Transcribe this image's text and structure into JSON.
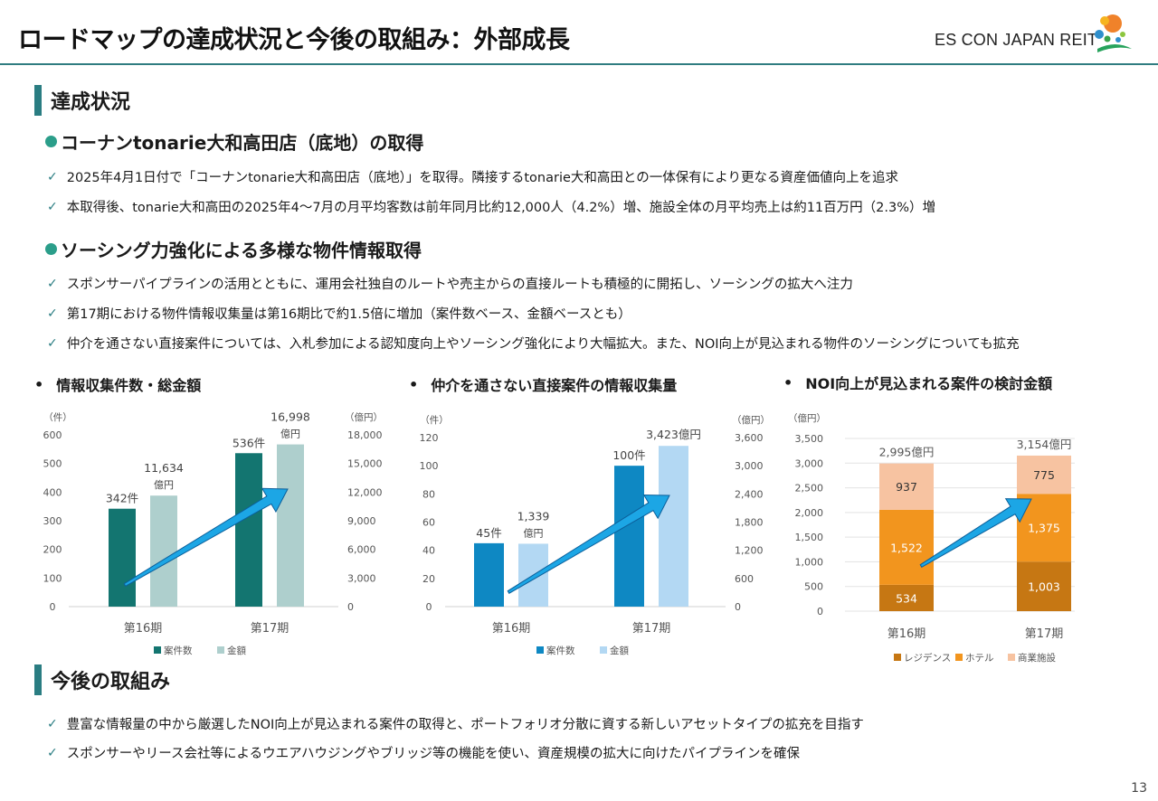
{
  "header": {
    "title": "ロードマップの達成状況と今後の取組み：外部成長",
    "logo_text": "ES CON JAPAN",
    "logo_suffix": "REIT"
  },
  "section1": {
    "label": "達成状況",
    "sub1": {
      "heading": "コーナンtonarie大和高田店（底地）の取得",
      "items": [
        "2025年4月1日付で「コーナンtonarie大和高田店（底地）」を取得。隣接するtonarie大和高田との一体保有により更なる資産価値向上を追求",
        "本取得後、tonarie大和高田の2025年4～7月の月平均客数は前年同月比約12,000人（4.2%）増、施設全体の月平均売上は約11百万円（2.3%）増"
      ]
    },
    "sub2": {
      "heading": "ソーシング力強化による多様な物件情報取得",
      "items": [
        "スポンサーパイプラインの活用とともに、運用会社独自のルートや売主からの直接ルートも積極的に開拓し、ソーシングの拡大へ注力",
        "第17期における物件情報収集量は第16期比で約1.5倍に増加（案件数ベース、金額ベースとも）",
        "仲介を通さない直接案件については、入札参加による認知度向上やソーシング強化により大幅拡大。また、NOI向上が見込まれる物件のソーシングについても拡充"
      ]
    }
  },
  "section2": {
    "label": "今後の取組み",
    "items": [
      "豊富な情報量の中から厳選したNOI向上が見込まれる案件の取得と、ポートフォリオ分散に資する新しいアセットタイプの拡充を目指す",
      "スポンサーやリース会社等によるウエアハウジングやブリッジ等の機能を使い、資産規模の拡大に向けたパイプラインを確保"
    ]
  },
  "bullet_mark": "•",
  "check_mark": "✓",
  "page_number": "13",
  "colors": {
    "teal_dark": "#137570",
    "teal_light": "#aecfcd",
    "blue_dark": "#0e88c3",
    "blue_light": "#b3d8f3",
    "residence": "#c67713",
    "hotel": "#f2951e",
    "commercial": "#f7c3a1",
    "arrow": "#1ca6e5"
  },
  "chart_data": [
    {
      "type": "bar",
      "title": "情報収集件数・総金額",
      "categories": [
        "第16期",
        "第17期"
      ],
      "ylabel_left": "（件）",
      "ylabel_right": "（億円）",
      "ylim_left": [
        0,
        600
      ],
      "ylim_right": [
        0,
        18000
      ],
      "yticks_left": [
        "0",
        "100",
        "200",
        "300",
        "400",
        "500",
        "600"
      ],
      "yticks_right": [
        "0",
        "3,000",
        "6,000",
        "9,000",
        "12,000",
        "15,000",
        "18,000"
      ],
      "series": [
        {
          "name": "案件数",
          "values": [
            342,
            536
          ],
          "labels": [
            "342件",
            "536件"
          ],
          "axis": "left"
        },
        {
          "name": "金額",
          "values": [
            11634,
            16998
          ],
          "labels": [
            "11,634",
            "16,998"
          ],
          "unit_labels": [
            "億円",
            "億円"
          ],
          "axis": "right"
        }
      ],
      "legend": "bottom"
    },
    {
      "type": "bar",
      "title": "仲介を通さない直接案件の情報収集量",
      "categories": [
        "第16期",
        "第17期"
      ],
      "ylabel_left": "（件）",
      "ylabel_right": "（億円）",
      "ylim_left": [
        0,
        120
      ],
      "ylim_right": [
        0,
        3600
      ],
      "yticks_left": [
        "0",
        "20",
        "40",
        "60",
        "80",
        "100",
        "120"
      ],
      "yticks_right": [
        "0",
        "600",
        "1,200",
        "1,800",
        "2,400",
        "3,000",
        "3,600"
      ],
      "series": [
        {
          "name": "案件数",
          "values": [
            45,
            100
          ],
          "labels": [
            "45件",
            "100件"
          ],
          "axis": "left"
        },
        {
          "name": "金額",
          "values": [
            1339,
            3423
          ],
          "labels": [
            "1,339",
            "3,423億円"
          ],
          "unit_labels": [
            "億円",
            ""
          ],
          "axis": "right"
        }
      ],
      "legend": "bottom"
    },
    {
      "type": "bar",
      "stacked": true,
      "title": "NOI向上が見込まれる案件の検討金額",
      "categories": [
        "第16期",
        "第17期"
      ],
      "ylabel_left": "（億円）",
      "ylim_left": [
        0,
        3500
      ],
      "yticks_left": [
        "0",
        "500",
        "1,000",
        "1,500",
        "2,000",
        "2,500",
        "3,000",
        "3,500"
      ],
      "totals": [
        "2,995億円",
        "3,154億円"
      ],
      "series": [
        {
          "name": "レジデンス",
          "values": [
            534,
            1003
          ],
          "labels": [
            "534",
            "1,003"
          ]
        },
        {
          "name": "ホテル",
          "values": [
            1522,
            1375
          ],
          "labels": [
            "1,522",
            "1,375"
          ]
        },
        {
          "name": "商業施設",
          "values": [
            937,
            775
          ],
          "labels": [
            "937",
            "775"
          ]
        }
      ],
      "legend": "bottom"
    }
  ]
}
